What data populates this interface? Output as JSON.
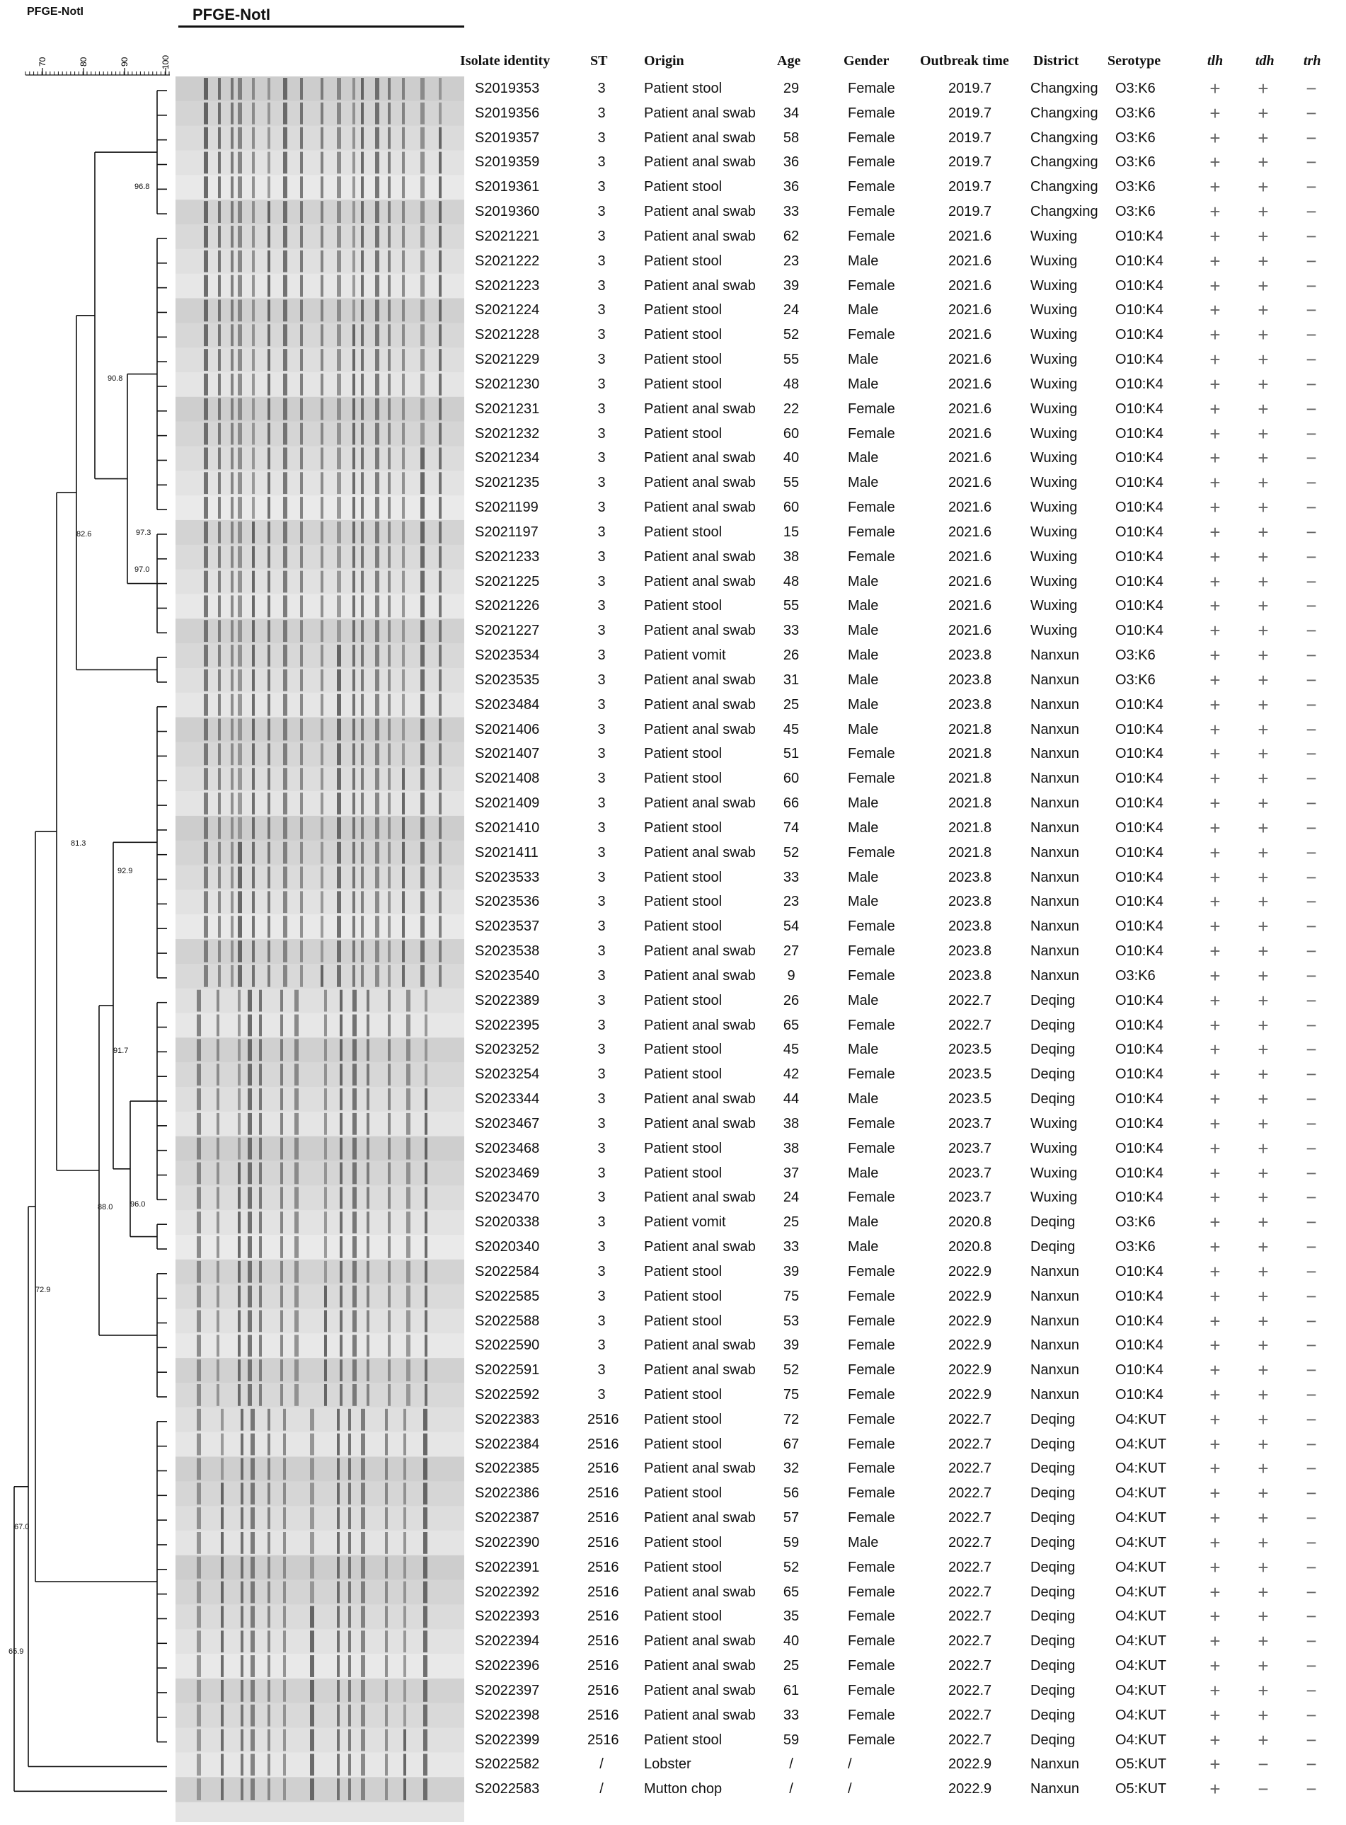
{
  "titles": {
    "left": "PFGE-NotI",
    "gel": "PFGE-NotI"
  },
  "scale": {
    "ticks": [
      "70",
      "80",
      "90",
      "100"
    ]
  },
  "headers": {
    "isolate": "Isolate identity",
    "st": "ST",
    "origin": "Origin",
    "age": "Age",
    "gender": "Gender",
    "outbreak": "Outbreak time",
    "district": "District",
    "serotype": "Serotype",
    "tlh": "tlh",
    "tdh": "tdh",
    "trh": "trh"
  },
  "node_labels": {
    "n968": "96.8",
    "n908": "90.8",
    "n826": "82.6",
    "n973": "97.3",
    "n970": "97.0",
    "n813": "81.3",
    "n929": "92.9",
    "n917": "91.7",
    "n960": "96.0",
    "n880": "88.0",
    "n729": "72.9",
    "n670": "67.0",
    "n659": "65.9"
  },
  "rows": [
    [
      "S2019353",
      "3",
      "Patient stool",
      "29",
      "Female",
      "2019.7",
      "Changxing",
      "O3:K6",
      "+",
      "+",
      "−"
    ],
    [
      "S2019356",
      "3",
      "Patient anal swab",
      "34",
      "Female",
      "2019.7",
      "Changxing",
      "O3:K6",
      "+",
      "+",
      "−"
    ],
    [
      "S2019357",
      "3",
      "Patient anal swab",
      "58",
      "Female",
      "2019.7",
      "Changxing",
      "O3:K6",
      "+",
      "+",
      "−"
    ],
    [
      "S2019359",
      "3",
      "Patient anal swab",
      "36",
      "Female",
      "2019.7",
      "Changxing",
      "O3:K6",
      "+",
      "+",
      "−"
    ],
    [
      "S2019361",
      "3",
      "Patient stool",
      "36",
      "Female",
      "2019.7",
      "Changxing",
      "O3:K6",
      "+",
      "+",
      "−"
    ],
    [
      "S2019360",
      "3",
      "Patient anal swab",
      "33",
      "Female",
      "2019.7",
      "Changxing",
      "O3:K6",
      "+",
      "+",
      "−"
    ],
    [
      "S2021221",
      "3",
      "Patient anal swab",
      "62",
      "Female",
      "2021.6",
      "Wuxing",
      "O10:K4",
      "+",
      "+",
      "−"
    ],
    [
      "S2021222",
      "3",
      "Patient stool",
      "23",
      "Male",
      "2021.6",
      "Wuxing",
      "O10:K4",
      "+",
      "+",
      "−"
    ],
    [
      "S2021223",
      "3",
      "Patient anal swab",
      "39",
      "Female",
      "2021.6",
      "Wuxing",
      "O10:K4",
      "+",
      "+",
      "−"
    ],
    [
      "S2021224",
      "3",
      "Patient stool",
      "24",
      "Male",
      "2021.6",
      "Wuxing",
      "O10:K4",
      "+",
      "+",
      "−"
    ],
    [
      "S2021228",
      "3",
      "Patient stool",
      "52",
      "Female",
      "2021.6",
      "Wuxing",
      "O10:K4",
      "+",
      "+",
      "−"
    ],
    [
      "S2021229",
      "3",
      "Patient stool",
      "55",
      "Male",
      "2021.6",
      "Wuxing",
      "O10:K4",
      "+",
      "+",
      "−"
    ],
    [
      "S2021230",
      "3",
      "Patient stool",
      "48",
      "Male",
      "2021.6",
      "Wuxing",
      "O10:K4",
      "+",
      "+",
      "−"
    ],
    [
      "S2021231",
      "3",
      "Patient anal swab",
      "22",
      "Female",
      "2021.6",
      "Wuxing",
      "O10:K4",
      "+",
      "+",
      "−"
    ],
    [
      "S2021232",
      "3",
      "Patient stool",
      "60",
      "Female",
      "2021.6",
      "Wuxing",
      "O10:K4",
      "+",
      "+",
      "−"
    ],
    [
      "S2021234",
      "3",
      "Patient anal swab",
      "40",
      "Male",
      "2021.6",
      "Wuxing",
      "O10:K4",
      "+",
      "+",
      "−"
    ],
    [
      "S2021235",
      "3",
      "Patient anal swab",
      "55",
      "Male",
      "2021.6",
      "Wuxing",
      "O10:K4",
      "+",
      "+",
      "−"
    ],
    [
      "S2021199",
      "3",
      "Patient anal swab",
      "60",
      "Female",
      "2021.6",
      "Wuxing",
      "O10:K4",
      "+",
      "+",
      "−"
    ],
    [
      "S2021197",
      "3",
      "Patient stool",
      "15",
      "Female",
      "2021.6",
      "Wuxing",
      "O10:K4",
      "+",
      "+",
      "−"
    ],
    [
      "S2021233",
      "3",
      "Patient anal swab",
      "38",
      "Female",
      "2021.6",
      "Wuxing",
      "O10:K4",
      "+",
      "+",
      "−"
    ],
    [
      "S2021225",
      "3",
      "Patient anal swab",
      "48",
      "Male",
      "2021.6",
      "Wuxing",
      "O10:K4",
      "+",
      "+",
      "−"
    ],
    [
      "S2021226",
      "3",
      "Patient stool",
      "55",
      "Male",
      "2021.6",
      "Wuxing",
      "O10:K4",
      "+",
      "+",
      "−"
    ],
    [
      "S2021227",
      "3",
      "Patient anal swab",
      "33",
      "Male",
      "2021.6",
      "Wuxing",
      "O10:K4",
      "+",
      "+",
      "−"
    ],
    [
      "S2023534",
      "3",
      "Patient vomit",
      "26",
      "Male",
      "2023.8",
      "Nanxun",
      "O3:K6",
      "+",
      "+",
      "−"
    ],
    [
      "S2023535",
      "3",
      "Patient anal swab",
      "31",
      "Male",
      "2023.8",
      "Nanxun",
      "O3:K6",
      "+",
      "+",
      "−"
    ],
    [
      "S2023484",
      "3",
      "Patient anal swab",
      "25",
      "Male",
      "2023.8",
      "Nanxun",
      "O10:K4",
      "+",
      "+",
      "−"
    ],
    [
      "S2021406",
      "3",
      "Patient anal swab",
      "45",
      "Male",
      "2021.8",
      "Nanxun",
      "O10:K4",
      "+",
      "+",
      "−"
    ],
    [
      "S2021407",
      "3",
      "Patient stool",
      "51",
      "Female",
      "2021.8",
      "Nanxun",
      "O10:K4",
      "+",
      "+",
      "−"
    ],
    [
      "S2021408",
      "3",
      "Patient stool",
      "60",
      "Female",
      "2021.8",
      "Nanxun",
      "O10:K4",
      "+",
      "+",
      "−"
    ],
    [
      "S2021409",
      "3",
      "Patient anal swab",
      "66",
      "Male",
      "2021.8",
      "Nanxun",
      "O10:K4",
      "+",
      "+",
      "−"
    ],
    [
      "S2021410",
      "3",
      "Patient stool",
      "74",
      "Male",
      "2021.8",
      "Nanxun",
      "O10:K4",
      "+",
      "+",
      "−"
    ],
    [
      "S2021411",
      "3",
      "Patient anal swab",
      "52",
      "Female",
      "2021.8",
      "Nanxun",
      "O10:K4",
      "+",
      "+",
      "−"
    ],
    [
      "S2023533",
      "3",
      "Patient stool",
      "33",
      "Male",
      "2023.8",
      "Nanxun",
      "O10:K4",
      "+",
      "+",
      "−"
    ],
    [
      "S2023536",
      "3",
      "Patient stool",
      "23",
      "Male",
      "2023.8",
      "Nanxun",
      "O10:K4",
      "+",
      "+",
      "−"
    ],
    [
      "S2023537",
      "3",
      "Patient stool",
      "54",
      "Female",
      "2023.8",
      "Nanxun",
      "O10:K4",
      "+",
      "+",
      "−"
    ],
    [
      "S2023538",
      "3",
      "Patient anal swab",
      "27",
      "Female",
      "2023.8",
      "Nanxun",
      "O10:K4",
      "+",
      "+",
      "−"
    ],
    [
      "S2023540",
      "3",
      "Patient anal swab",
      "9",
      "Female",
      "2023.8",
      "Nanxun",
      "O3:K6",
      "+",
      "+",
      "−"
    ],
    [
      "S2022389",
      "3",
      "Patient stool",
      "26",
      "Male",
      "2022.7",
      "Deqing",
      "O10:K4",
      "+",
      "+",
      "−"
    ],
    [
      "S2022395",
      "3",
      "Patient anal swab",
      "65",
      "Female",
      "2022.7",
      "Deqing",
      "O10:K4",
      "+",
      "+",
      "−"
    ],
    [
      "S2023252",
      "3",
      "Patient stool",
      "45",
      "Male",
      "2023.5",
      "Deqing",
      "O10:K4",
      "+",
      "+",
      "−"
    ],
    [
      "S2023254",
      "3",
      "Patient stool",
      "42",
      "Female",
      "2023.5",
      "Deqing",
      "O10:K4",
      "+",
      "+",
      "−"
    ],
    [
      "S2023344",
      "3",
      "Patient anal swab",
      "44",
      "Male",
      "2023.5",
      "Deqing",
      "O10:K4",
      "+",
      "+",
      "−"
    ],
    [
      "S2023467",
      "3",
      "Patient anal swab",
      "38",
      "Female",
      "2023.7",
      "Wuxing",
      "O10:K4",
      "+",
      "+",
      "−"
    ],
    [
      "S2023468",
      "3",
      "Patient stool",
      "38",
      "Female",
      "2023.7",
      "Wuxing",
      "O10:K4",
      "+",
      "+",
      "−"
    ],
    [
      "S2023469",
      "3",
      "Patient stool",
      "37",
      "Male",
      "2023.7",
      "Wuxing",
      "O10:K4",
      "+",
      "+",
      "−"
    ],
    [
      "S2023470",
      "3",
      "Patient anal swab",
      "24",
      "Female",
      "2023.7",
      "Wuxing",
      "O10:K4",
      "+",
      "+",
      "−"
    ],
    [
      "S2020338",
      "3",
      "Patient vomit",
      "25",
      "Male",
      "2020.8",
      "Deqing",
      "O3:K6",
      "+",
      "+",
      "−"
    ],
    [
      "S2020340",
      "3",
      "Patient anal swab",
      "33",
      "Male",
      "2020.8",
      "Deqing",
      "O3:K6",
      "+",
      "+",
      "−"
    ],
    [
      "S2022584",
      "3",
      "Patient stool",
      "39",
      "Female",
      "2022.9",
      "Nanxun",
      "O10:K4",
      "+",
      "+",
      "−"
    ],
    [
      "S2022585",
      "3",
      "Patient stool",
      "75",
      "Female",
      "2022.9",
      "Nanxun",
      "O10:K4",
      "+",
      "+",
      "−"
    ],
    [
      "S2022588",
      "3",
      "Patient stool",
      "53",
      "Female",
      "2022.9",
      "Nanxun",
      "O10:K4",
      "+",
      "+",
      "−"
    ],
    [
      "S2022590",
      "3",
      "Patient anal swab",
      "39",
      "Female",
      "2022.9",
      "Nanxun",
      "O10:K4",
      "+",
      "+",
      "−"
    ],
    [
      "S2022591",
      "3",
      "Patient anal swab",
      "52",
      "Female",
      "2022.9",
      "Nanxun",
      "O10:K4",
      "+",
      "+",
      "−"
    ],
    [
      "S2022592",
      "3",
      "Patient stool",
      "75",
      "Female",
      "2022.9",
      "Nanxun",
      "O10:K4",
      "+",
      "+",
      "−"
    ],
    [
      "S2022383",
      "2516",
      "Patient stool",
      "72",
      "Female",
      "2022.7",
      "Deqing",
      "O4:KUT",
      "+",
      "+",
      "−"
    ],
    [
      "S2022384",
      "2516",
      "Patient stool",
      "67",
      "Female",
      "2022.7",
      "Deqing",
      "O4:KUT",
      "+",
      "+",
      "−"
    ],
    [
      "S2022385",
      "2516",
      "Patient anal swab",
      "32",
      "Female",
      "2022.7",
      "Deqing",
      "O4:KUT",
      "+",
      "+",
      "−"
    ],
    [
      "S2022386",
      "2516",
      "Patient stool",
      "56",
      "Female",
      "2022.7",
      "Deqing",
      "O4:KUT",
      "+",
      "+",
      "−"
    ],
    [
      "S2022387",
      "2516",
      "Patient anal swab",
      "57",
      "Female",
      "2022.7",
      "Deqing",
      "O4:KUT",
      "+",
      "+",
      "−"
    ],
    [
      "S2022390",
      "2516",
      "Patient stool",
      "59",
      "Male",
      "2022.7",
      "Deqing",
      "O4:KUT",
      "+",
      "+",
      "−"
    ],
    [
      "S2022391",
      "2516",
      "Patient stool",
      "52",
      "Female",
      "2022.7",
      "Deqing",
      "O4:KUT",
      "+",
      "+",
      "−"
    ],
    [
      "S2022392",
      "2516",
      "Patient anal swab",
      "65",
      "Female",
      "2022.7",
      "Deqing",
      "O4:KUT",
      "+",
      "+",
      "−"
    ],
    [
      "S2022393",
      "2516",
      "Patient stool",
      "35",
      "Female",
      "2022.7",
      "Deqing",
      "O4:KUT",
      "+",
      "+",
      "−"
    ],
    [
      "S2022394",
      "2516",
      "Patient anal swab",
      "40",
      "Female",
      "2022.7",
      "Deqing",
      "O4:KUT",
      "+",
      "+",
      "−"
    ],
    [
      "S2022396",
      "2516",
      "Patient anal swab",
      "25",
      "Female",
      "2022.7",
      "Deqing",
      "O4:KUT",
      "+",
      "+",
      "−"
    ],
    [
      "S2022397",
      "2516",
      "Patient anal swab",
      "61",
      "Female",
      "2022.7",
      "Deqing",
      "O4:KUT",
      "+",
      "+",
      "−"
    ],
    [
      "S2022398",
      "2516",
      "Patient anal swab",
      "33",
      "Female",
      "2022.7",
      "Deqing",
      "O4:KUT",
      "+",
      "+",
      "−"
    ],
    [
      "S2022399",
      "2516",
      "Patient stool",
      "59",
      "Female",
      "2022.7",
      "Deqing",
      "O4:KUT",
      "+",
      "+",
      "−"
    ],
    [
      "S2022582",
      "/",
      "Lobster",
      "/",
      "/",
      "2022.9",
      "Nanxun",
      "O5:KUT",
      "+",
      "−",
      "−"
    ],
    [
      "S2022583",
      "/",
      "Mutton chop",
      "/",
      "/",
      "2022.9",
      "Nanxun",
      "O5:KUT",
      "+",
      "−",
      "−"
    ]
  ]
}
